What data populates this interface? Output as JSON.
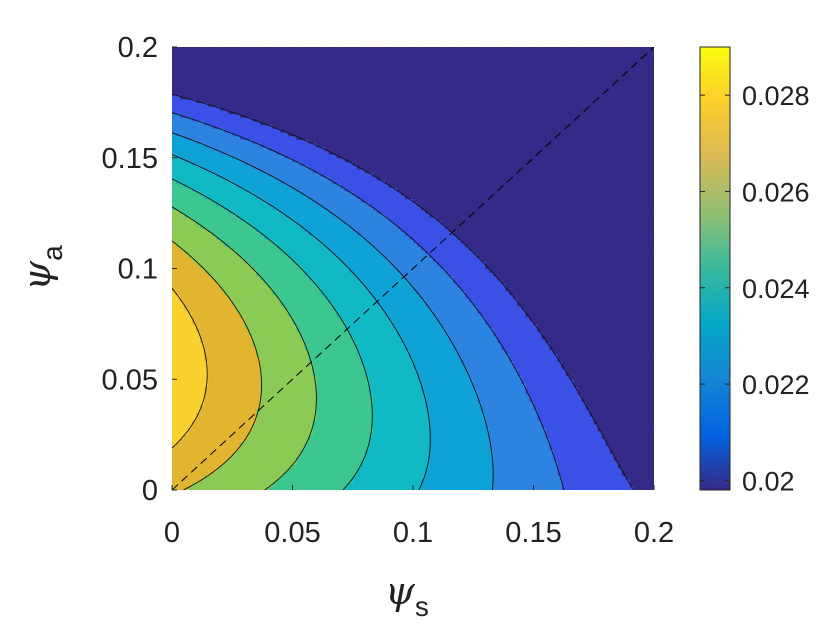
{
  "chart_data": {
    "type": "contour",
    "title": "",
    "xlabel": {
      "symbol": "ψ",
      "subscript": "s"
    },
    "ylabel": {
      "symbol": "ψ",
      "subscript": "a"
    },
    "xlim": [
      0,
      0.2
    ],
    "ylim": [
      0,
      0.2
    ],
    "x_ticks": [
      "0",
      "0.05",
      "0.1",
      "0.15",
      "0.2"
    ],
    "y_ticks": [
      "0",
      "0.05",
      "0.1",
      "0.15",
      "0.2"
    ],
    "x_tick_values": [
      0,
      0.05,
      0.1,
      0.15,
      0.2
    ],
    "y_tick_values": [
      0,
      0.05,
      0.1,
      0.15,
      0.2
    ],
    "colorbar": {
      "limits": [
        0.0198,
        0.029
      ],
      "ticks": [
        "0.02",
        "0.022",
        "0.024",
        "0.026",
        "0.028"
      ],
      "tick_values": [
        0.02,
        0.022,
        0.024,
        0.026,
        0.028
      ],
      "colormap": "parula"
    },
    "contour_levels": [
      0.021,
      0.022,
      0.023,
      0.024,
      0.025,
      0.026,
      0.027,
      0.028
    ],
    "fill_colors": [
      "#352a87",
      "#3a50e6",
      "#2c83e0",
      "#0fa2d6",
      "#10b9c4",
      "#3cc690",
      "#8bcb55",
      "#e1b530",
      "#f9d22f",
      "#f9fb0e"
    ],
    "extrema": {
      "max_value": 0.029,
      "max_location": [
        0,
        0.055
      ],
      "min_value": 0.0198,
      "min_location": [
        0.2,
        0.2
      ]
    },
    "reference_line": {
      "style": "dashed",
      "x": [
        0,
        0.2
      ],
      "y": [
        0,
        0.2
      ]
    },
    "grid": false,
    "legend": "none"
  }
}
